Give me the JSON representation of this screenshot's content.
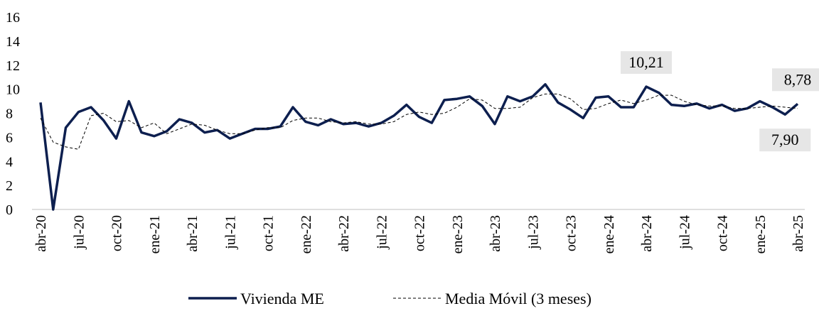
{
  "chart_data": {
    "type": "line",
    "categories": [
      "abr-20",
      null,
      null,
      "jul-20",
      null,
      null,
      "oct-20",
      null,
      null,
      "ene-21",
      null,
      null,
      "abr-21",
      null,
      null,
      "jul-21",
      null,
      null,
      "oct-21",
      null,
      null,
      "ene-22",
      null,
      null,
      "abr-22",
      null,
      null,
      "jul-22",
      null,
      null,
      "oct-22",
      null,
      null,
      "ene-23",
      null,
      null,
      "abr-23",
      null,
      null,
      "jul-23",
      null,
      null,
      "oct-23",
      null,
      null,
      "ene-24",
      null,
      null,
      "abr-24",
      null,
      null,
      "jul-24",
      null,
      null,
      "oct-24",
      null,
      null,
      "ene-25",
      null,
      null,
      "abr-25"
    ],
    "series": [
      {
        "name": "Vivienda ME",
        "color": "#0d1f4f",
        "dash": false,
        "values": [
          8.9,
          0,
          6.8,
          8.1,
          8.5,
          7.4,
          5.9,
          9.0,
          6.4,
          6.1,
          6.5,
          7.5,
          7.2,
          6.4,
          6.6,
          5.9,
          6.3,
          6.7,
          6.7,
          6.9,
          8.5,
          7.3,
          7.0,
          7.5,
          7.1,
          7.2,
          6.9,
          7.2,
          7.8,
          8.7,
          7.7,
          7.2,
          9.1,
          9.2,
          9.4,
          8.6,
          7.1,
          9.4,
          9.0,
          9.4,
          10.4,
          8.9,
          8.3,
          7.6,
          9.3,
          9.4,
          8.5,
          8.5,
          10.21,
          9.7,
          8.7,
          8.6,
          8.8,
          8.4,
          8.7,
          8.2,
          8.4,
          9.0,
          8.5,
          7.9,
          8.78
        ],
        "value_labels": [
          null,
          null,
          null,
          null,
          null,
          null,
          null,
          null,
          null,
          null,
          null,
          null,
          null,
          null,
          null,
          null,
          null,
          null,
          null,
          null,
          null,
          null,
          null,
          null,
          null,
          null,
          null,
          null,
          null,
          null,
          null,
          null,
          null,
          null,
          null,
          null,
          null,
          null,
          null,
          null,
          null,
          null,
          null,
          null,
          null,
          null,
          null,
          null,
          "10,21",
          null,
          null,
          null,
          null,
          null,
          null,
          null,
          null,
          null,
          null,
          "7,90",
          "8,78"
        ]
      },
      {
        "name": "Media Móvil (3 meses)",
        "color": "#000000",
        "dash": true,
        "values": [
          7.6,
          5.6,
          5.2,
          5.0,
          7.8,
          8.0,
          7.3,
          7.4,
          6.8,
          7.2,
          6.3,
          6.7,
          7.1,
          7.0,
          6.6,
          6.3,
          6.3,
          6.6,
          6.8,
          6.8,
          7.4,
          7.6,
          7.6,
          7.3,
          7.2,
          7.3,
          7.1,
          7.1,
          7.3,
          7.9,
          8.1,
          7.9,
          8.0,
          8.5,
          9.2,
          9.1,
          8.4,
          8.4,
          8.5,
          9.3,
          9.6,
          9.6,
          9.2,
          8.3,
          8.4,
          8.8,
          9.1,
          8.8,
          9.1,
          9.5,
          9.5,
          9.0,
          8.7,
          8.6,
          8.6,
          8.4,
          8.4,
          8.5,
          8.6,
          8.5,
          8.4
        ]
      }
    ],
    "ylim": [
      0,
      16
    ],
    "yticks": [
      0,
      2,
      4,
      6,
      8,
      10,
      12,
      14,
      16
    ],
    "grid": false
  }
}
